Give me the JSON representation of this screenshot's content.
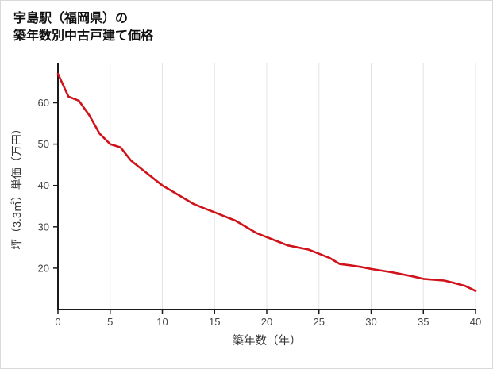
{
  "title": {
    "line1": "宇島駅（福岡県）の",
    "line2": "築年数別中古戸建て価格"
  },
  "chart_data": {
    "type": "line",
    "title": "宇島駅（福岡県）の築年数別中古戸建て価格",
    "xlabel": "築年数（年）",
    "ylabel": "坪（3.3㎡）単価（万円）",
    "x": [
      0,
      1,
      2,
      3,
      4,
      5,
      6,
      7,
      8,
      9,
      10,
      11,
      12,
      13,
      14,
      15,
      16,
      17,
      18,
      19,
      20,
      21,
      22,
      23,
      24,
      25,
      26,
      27,
      28,
      29,
      30,
      31,
      32,
      33,
      34,
      35,
      36,
      37,
      38,
      39,
      40
    ],
    "y": [
      67,
      61.5,
      60.5,
      57,
      52.5,
      50,
      49.2,
      46,
      44,
      42,
      40,
      38.5,
      37,
      35.5,
      34.5,
      33.5,
      32.5,
      31.5,
      30,
      28.5,
      27.5,
      26.5,
      25.5,
      25,
      24.5,
      23.5,
      22.5,
      21,
      20.7,
      20.3,
      19.8,
      19.4,
      19,
      18.5,
      18,
      17.4,
      17.2,
      17,
      16.4,
      15.7,
      14.5
    ],
    "x_ticks": [
      0,
      5,
      10,
      15,
      20,
      25,
      30,
      35,
      40
    ],
    "y_ticks": [
      20,
      30,
      40,
      50,
      60
    ],
    "xlim": [
      0,
      40
    ],
    "ylim": [
      10,
      69.5
    ],
    "grid": "vertical-only",
    "legend": "none",
    "line_color": "#d0121a"
  },
  "colors": {
    "line": "#d0121a",
    "axis": "#1a1a1a",
    "grid": "#e3e3e3",
    "tick_text": "#444444",
    "title_text": "#111111",
    "border": "#d9d9d9"
  }
}
